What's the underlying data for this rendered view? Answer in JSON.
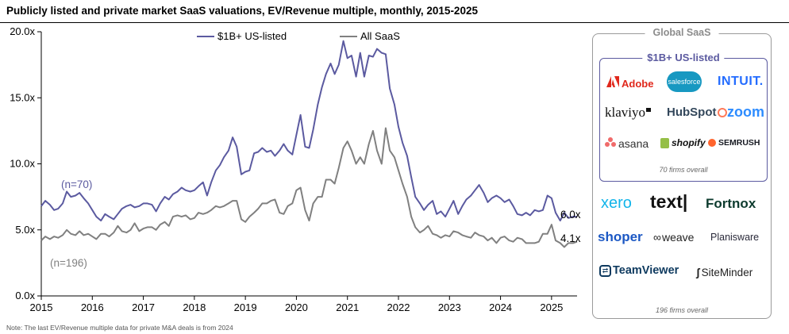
{
  "title": "Publicly listed and private market SaaS valuations, EV/Revenue multiple, monthly, 2015-2025",
  "note": "Note: The last EV/Revenue multiple data for private M&A deals is from 2024",
  "colors": {
    "listed": "#5b5aa0",
    "all": "#808080",
    "axis": "#000000",
    "panel_border": "#9a9a9a"
  },
  "chart_data": {
    "type": "line",
    "title": "Publicly listed and private market SaaS valuations, EV/Revenue multiple, monthly, 2015-2025",
    "xlabel": "",
    "ylabel": "EV/Revenue multiple",
    "xlim": [
      2015,
      2025.5
    ],
    "ylim": [
      0,
      20
    ],
    "yticks": [
      0,
      5,
      10,
      15,
      20
    ],
    "ytick_labels": [
      "0.0x",
      "5.0x",
      "10.0x",
      "15.0x",
      "20.0x"
    ],
    "xticks": [
      2015,
      2016,
      2017,
      2018,
      2019,
      2020,
      2021,
      2022,
      2023,
      2024,
      2025
    ],
    "xtick_labels": [
      "2015",
      "2016",
      "2017",
      "2018",
      "2019",
      "2020",
      "2021",
      "2022",
      "2023",
      "2024",
      "2025"
    ],
    "legend": [
      "$1B+ US-listed",
      "All SaaS"
    ],
    "legend_position": "top-center",
    "annotations": [
      {
        "text": "(n=70)",
        "series": "$1B+ US-listed"
      },
      {
        "text": "(n=196)",
        "series": "All SaaS"
      },
      {
        "text": "6.0x",
        "series": "$1B+ US-listed"
      },
      {
        "text": "4.1x",
        "series": "All SaaS"
      }
    ],
    "series": [
      {
        "name": "$1B+ US-listed",
        "color": "#5b5aa0",
        "points": [
          [
            2015.0,
            6.8
          ],
          [
            2015.08,
            7.2
          ],
          [
            2015.17,
            6.9
          ],
          [
            2015.25,
            6.5
          ],
          [
            2015.33,
            6.6
          ],
          [
            2015.42,
            7.0
          ],
          [
            2015.5,
            7.9
          ],
          [
            2015.58,
            7.5
          ],
          [
            2015.67,
            7.6
          ],
          [
            2015.75,
            7.8
          ],
          [
            2015.83,
            7.4
          ],
          [
            2015.92,
            7.0
          ],
          [
            2016.0,
            6.5
          ],
          [
            2016.08,
            6.0
          ],
          [
            2016.17,
            5.7
          ],
          [
            2016.25,
            6.2
          ],
          [
            2016.33,
            6.0
          ],
          [
            2016.42,
            5.8
          ],
          [
            2016.5,
            6.2
          ],
          [
            2016.58,
            6.6
          ],
          [
            2016.67,
            6.8
          ],
          [
            2016.75,
            6.9
          ],
          [
            2016.83,
            6.7
          ],
          [
            2016.92,
            6.8
          ],
          [
            2017.0,
            7.0
          ],
          [
            2017.08,
            7.0
          ],
          [
            2017.17,
            6.9
          ],
          [
            2017.25,
            6.4
          ],
          [
            2017.33,
            7.0
          ],
          [
            2017.42,
            7.5
          ],
          [
            2017.5,
            7.3
          ],
          [
            2017.58,
            7.7
          ],
          [
            2017.67,
            7.9
          ],
          [
            2017.75,
            8.2
          ],
          [
            2017.83,
            8.0
          ],
          [
            2017.92,
            7.9
          ],
          [
            2018.0,
            8.0
          ],
          [
            2018.08,
            8.3
          ],
          [
            2018.17,
            8.6
          ],
          [
            2018.25,
            7.6
          ],
          [
            2018.33,
            8.6
          ],
          [
            2018.42,
            9.5
          ],
          [
            2018.5,
            9.9
          ],
          [
            2018.58,
            10.5
          ],
          [
            2018.67,
            11.0
          ],
          [
            2018.75,
            12.0
          ],
          [
            2018.83,
            11.3
          ],
          [
            2018.92,
            9.2
          ],
          [
            2019.0,
            9.4
          ],
          [
            2019.08,
            9.5
          ],
          [
            2019.17,
            10.8
          ],
          [
            2019.25,
            10.9
          ],
          [
            2019.33,
            11.2
          ],
          [
            2019.42,
            10.9
          ],
          [
            2019.5,
            11.0
          ],
          [
            2019.58,
            10.6
          ],
          [
            2019.67,
            11.0
          ],
          [
            2019.75,
            11.5
          ],
          [
            2019.83,
            11.0
          ],
          [
            2019.92,
            10.7
          ],
          [
            2020.0,
            12.2
          ],
          [
            2020.08,
            13.7
          ],
          [
            2020.17,
            11.3
          ],
          [
            2020.25,
            11.2
          ],
          [
            2020.33,
            12.6
          ],
          [
            2020.42,
            14.5
          ],
          [
            2020.5,
            15.8
          ],
          [
            2020.58,
            16.8
          ],
          [
            2020.67,
            17.6
          ],
          [
            2020.75,
            16.8
          ],
          [
            2020.83,
            17.5
          ],
          [
            2020.92,
            19.3
          ],
          [
            2021.0,
            18.0
          ],
          [
            2021.08,
            18.2
          ],
          [
            2021.17,
            16.6
          ],
          [
            2021.25,
            18.4
          ],
          [
            2021.33,
            16.6
          ],
          [
            2021.42,
            18.2
          ],
          [
            2021.5,
            18.1
          ],
          [
            2021.58,
            18.7
          ],
          [
            2021.67,
            18.4
          ],
          [
            2021.75,
            18.3
          ],
          [
            2021.83,
            15.7
          ],
          [
            2021.92,
            14.5
          ],
          [
            2022.0,
            12.8
          ],
          [
            2022.08,
            11.6
          ],
          [
            2022.17,
            10.6
          ],
          [
            2022.25,
            9.0
          ],
          [
            2022.33,
            7.5
          ],
          [
            2022.42,
            7.0
          ],
          [
            2022.5,
            6.5
          ],
          [
            2022.58,
            6.9
          ],
          [
            2022.67,
            7.2
          ],
          [
            2022.75,
            6.2
          ],
          [
            2022.83,
            6.4
          ],
          [
            2022.92,
            6.0
          ],
          [
            2023.0,
            6.6
          ],
          [
            2023.08,
            7.2
          ],
          [
            2023.17,
            6.2
          ],
          [
            2023.25,
            6.8
          ],
          [
            2023.33,
            7.3
          ],
          [
            2023.42,
            7.6
          ],
          [
            2023.5,
            8.0
          ],
          [
            2023.58,
            8.4
          ],
          [
            2023.67,
            7.8
          ],
          [
            2023.75,
            7.1
          ],
          [
            2023.83,
            7.4
          ],
          [
            2023.92,
            7.6
          ],
          [
            2024.0,
            7.4
          ],
          [
            2024.08,
            7.1
          ],
          [
            2024.17,
            7.3
          ],
          [
            2024.25,
            6.8
          ],
          [
            2024.33,
            6.2
          ],
          [
            2024.42,
            6.1
          ],
          [
            2024.5,
            6.3
          ],
          [
            2024.58,
            6.1
          ],
          [
            2024.67,
            6.5
          ],
          [
            2024.75,
            6.4
          ],
          [
            2024.83,
            6.5
          ],
          [
            2024.92,
            7.6
          ],
          [
            2025.0,
            7.4
          ],
          [
            2025.08,
            6.3
          ],
          [
            2025.17,
            5.7
          ],
          [
            2025.25,
            6.3
          ],
          [
            2025.33,
            5.9
          ],
          [
            2025.42,
            6.0
          ],
          [
            2025.5,
            6.0
          ]
        ]
      },
      {
        "name": "All SaaS",
        "color": "#808080",
        "points": [
          [
            2015.0,
            4.2
          ],
          [
            2015.08,
            4.5
          ],
          [
            2015.17,
            4.3
          ],
          [
            2015.25,
            4.5
          ],
          [
            2015.33,
            4.4
          ],
          [
            2015.42,
            4.6
          ],
          [
            2015.5,
            5.0
          ],
          [
            2015.58,
            4.7
          ],
          [
            2015.67,
            4.6
          ],
          [
            2015.75,
            4.9
          ],
          [
            2015.83,
            4.6
          ],
          [
            2015.92,
            4.7
          ],
          [
            2016.0,
            4.5
          ],
          [
            2016.08,
            4.3
          ],
          [
            2016.17,
            4.7
          ],
          [
            2016.25,
            4.7
          ],
          [
            2016.33,
            4.5
          ],
          [
            2016.42,
            4.8
          ],
          [
            2016.5,
            5.3
          ],
          [
            2016.58,
            4.9
          ],
          [
            2016.67,
            4.8
          ],
          [
            2016.75,
            5.0
          ],
          [
            2016.83,
            5.5
          ],
          [
            2016.92,
            4.9
          ],
          [
            2017.0,
            5.1
          ],
          [
            2017.08,
            5.2
          ],
          [
            2017.17,
            5.2
          ],
          [
            2017.25,
            5.0
          ],
          [
            2017.33,
            5.4
          ],
          [
            2017.42,
            5.6
          ],
          [
            2017.5,
            5.3
          ],
          [
            2017.58,
            6.0
          ],
          [
            2017.67,
            6.1
          ],
          [
            2017.75,
            6.0
          ],
          [
            2017.83,
            6.1
          ],
          [
            2017.92,
            5.8
          ],
          [
            2018.0,
            5.9
          ],
          [
            2018.08,
            6.3
          ],
          [
            2018.17,
            6.2
          ],
          [
            2018.25,
            6.3
          ],
          [
            2018.33,
            6.5
          ],
          [
            2018.42,
            6.8
          ],
          [
            2018.5,
            6.7
          ],
          [
            2018.58,
            6.8
          ],
          [
            2018.67,
            7.0
          ],
          [
            2018.75,
            7.2
          ],
          [
            2018.83,
            7.2
          ],
          [
            2018.92,
            5.8
          ],
          [
            2019.0,
            5.6
          ],
          [
            2019.08,
            6.0
          ],
          [
            2019.17,
            6.3
          ],
          [
            2019.25,
            6.6
          ],
          [
            2019.33,
            7.0
          ],
          [
            2019.42,
            7.0
          ],
          [
            2019.5,
            7.2
          ],
          [
            2019.58,
            7.3
          ],
          [
            2019.67,
            6.3
          ],
          [
            2019.75,
            6.2
          ],
          [
            2019.83,
            6.8
          ],
          [
            2019.92,
            7.0
          ],
          [
            2020.0,
            8.0
          ],
          [
            2020.08,
            8.2
          ],
          [
            2020.17,
            6.5
          ],
          [
            2020.25,
            5.7
          ],
          [
            2020.33,
            7.0
          ],
          [
            2020.42,
            7.5
          ],
          [
            2020.5,
            7.5
          ],
          [
            2020.58,
            8.8
          ],
          [
            2020.67,
            8.8
          ],
          [
            2020.75,
            8.5
          ],
          [
            2020.83,
            9.7
          ],
          [
            2020.92,
            11.2
          ],
          [
            2021.0,
            11.7
          ],
          [
            2021.08,
            11.0
          ],
          [
            2021.17,
            10.0
          ],
          [
            2021.25,
            10.5
          ],
          [
            2021.33,
            10.0
          ],
          [
            2021.42,
            11.5
          ],
          [
            2021.5,
            12.5
          ],
          [
            2021.58,
            11.0
          ],
          [
            2021.67,
            10.0
          ],
          [
            2021.75,
            12.7
          ],
          [
            2021.83,
            11.0
          ],
          [
            2021.92,
            10.5
          ],
          [
            2022.0,
            9.5
          ],
          [
            2022.08,
            8.5
          ],
          [
            2022.17,
            7.5
          ],
          [
            2022.25,
            6.0
          ],
          [
            2022.33,
            5.2
          ],
          [
            2022.42,
            4.8
          ],
          [
            2022.5,
            5.0
          ],
          [
            2022.58,
            5.3
          ],
          [
            2022.67,
            4.7
          ],
          [
            2022.75,
            4.6
          ],
          [
            2022.83,
            4.4
          ],
          [
            2022.92,
            4.6
          ],
          [
            2023.0,
            4.5
          ],
          [
            2023.08,
            4.9
          ],
          [
            2023.17,
            4.8
          ],
          [
            2023.25,
            4.6
          ],
          [
            2023.33,
            4.5
          ],
          [
            2023.42,
            4.4
          ],
          [
            2023.5,
            4.8
          ],
          [
            2023.58,
            4.6
          ],
          [
            2023.67,
            4.5
          ],
          [
            2023.75,
            4.2
          ],
          [
            2023.83,
            4.4
          ],
          [
            2023.92,
            4.0
          ],
          [
            2024.0,
            4.4
          ],
          [
            2024.08,
            4.5
          ],
          [
            2024.17,
            4.2
          ],
          [
            2024.25,
            4.1
          ],
          [
            2024.33,
            4.4
          ],
          [
            2024.42,
            4.3
          ],
          [
            2024.5,
            4.0
          ],
          [
            2024.58,
            4.0
          ],
          [
            2024.67,
            4.0
          ],
          [
            2024.75,
            4.1
          ],
          [
            2024.83,
            4.7
          ],
          [
            2024.92,
            4.7
          ],
          [
            2025.0,
            5.4
          ],
          [
            2025.08,
            4.2
          ],
          [
            2025.17,
            4.0
          ],
          [
            2025.25,
            3.7
          ],
          [
            2025.33,
            4.0
          ],
          [
            2025.42,
            4.0
          ],
          [
            2025.5,
            4.1
          ]
        ]
      }
    ]
  },
  "panel": {
    "title": "Global SaaS",
    "sub_title": "$1B+ US-listed",
    "listed_firms_note": "70 firms overall",
    "all_firms_note": "196 firms overall",
    "listed_logos": [
      {
        "name": "Adobe",
        "icon": "adobe-icon"
      },
      {
        "name": "salesforce",
        "icon": "cloud-icon"
      },
      {
        "name": "INTUIT.",
        "icon": ""
      },
      {
        "name": "klaviyo",
        "icon": "flag-icon"
      },
      {
        "name": "HubSpot",
        "icon": "sprocket-icon"
      },
      {
        "name": "zoom",
        "icon": ""
      },
      {
        "name": "asana",
        "icon": "dots-icon"
      },
      {
        "name": "shopify",
        "icon": "bag-icon"
      },
      {
        "name": "SEMRUSH",
        "icon": "flame-icon"
      }
    ],
    "other_logos": [
      {
        "name": "xero",
        "icon": ""
      },
      {
        "name": "text|",
        "icon": ""
      },
      {
        "name": "Fortnox",
        "icon": ""
      },
      {
        "name": "shoper",
        "icon": ""
      },
      {
        "name": "weave",
        "icon": "infinity-icon"
      },
      {
        "name": "Planisware",
        "icon": ""
      },
      {
        "name": "TeamViewer",
        "icon": "arrows-icon"
      },
      {
        "name": "SiteMinder",
        "icon": "s-icon"
      }
    ]
  }
}
